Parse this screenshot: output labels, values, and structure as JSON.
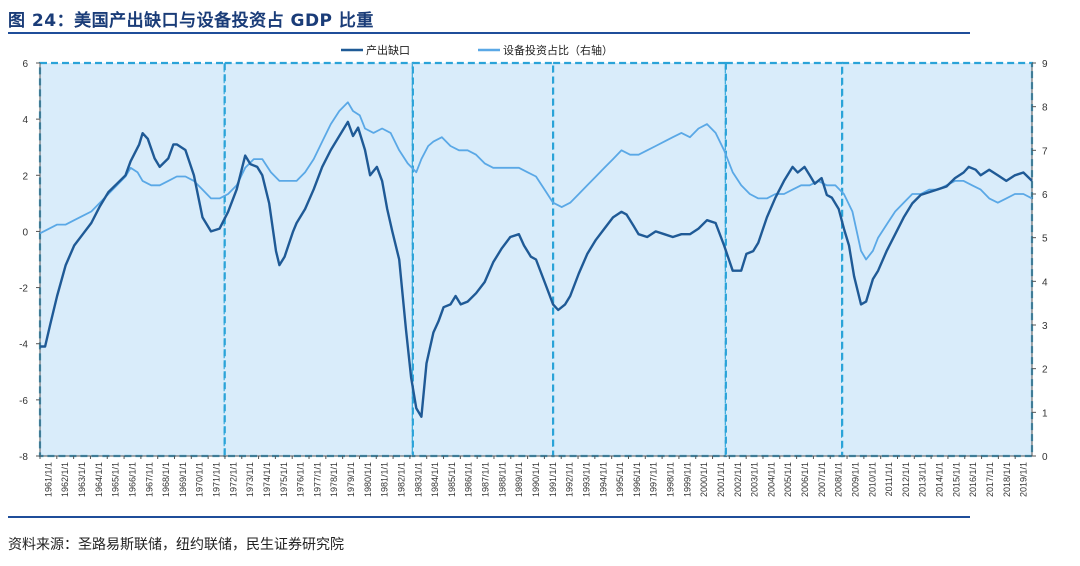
{
  "header": {
    "title": "图 24：美国产出缺口与设备投资占 GDP 比重"
  },
  "footer": {
    "source": "资料来源：圣路易斯联储，纽约联储，民生证券研究院"
  },
  "colors": {
    "output_gap": "#1f5a96",
    "equipment": "#5aa8e6",
    "band": "#d9ecfa",
    "dash": "#2aa3d8"
  },
  "chart_data": {
    "type": "line",
    "title": "",
    "x_start": 1961,
    "x_end": 2019,
    "x_ticks": [
      "1961/1/1",
      "1962/1/1",
      "1963/1/1",
      "1964/1/1",
      "1965/1/1",
      "1966/1/1",
      "1967/1/1",
      "1968/1/1",
      "1969/1/1",
      "1970/1/1",
      "1971/1/1",
      "1972/1/1",
      "1973/1/1",
      "1974/1/1",
      "1975/1/1",
      "1976/1/1",
      "1977/1/1",
      "1978/1/1",
      "1979/1/1",
      "1980/1/1",
      "1981/1/1",
      "1982/1/1",
      "1983/1/1",
      "1984/1/1",
      "1985/1/1",
      "1986/1/1",
      "1987/1/1",
      "1988/1/1",
      "1989/1/1",
      "1990/1/1",
      "1991/1/1",
      "1992/1/1",
      "1993/1/1",
      "1994/1/1",
      "1995/1/1",
      "1996/1/1",
      "1997/1/1",
      "1998/1/1",
      "1999/1/1",
      "2000/1/1",
      "2001/1/1",
      "2002/1/1",
      "2003/1/1",
      "2004/1/1",
      "2005/1/1",
      "2006/1/1",
      "2007/1/1",
      "2008/1/1",
      "2009/1/1",
      "2010/1/1",
      "2011/1/1",
      "2012/1/1",
      "2013/1/1",
      "2014/1/1",
      "2015/1/1",
      "2016/1/1",
      "2017/1/1",
      "2018/1/1",
      "2019/1/1"
    ],
    "y_left": {
      "min": -8,
      "max": 6,
      "ticks": [
        "6",
        "4",
        "2",
        "0",
        "-2",
        "-4",
        "-6",
        "-8"
      ]
    },
    "y_right": {
      "min": 0,
      "max": 9,
      "ticks": [
        "9",
        "8",
        "7",
        "6",
        "5",
        "4",
        "3",
        "2",
        "1",
        "0"
      ]
    },
    "legend_position": "top-center",
    "periods": [
      [
        1961,
        1971.8
      ],
      [
        1971.8,
        1982.8
      ],
      [
        1982.8,
        1991.0
      ],
      [
        1991.0,
        2001.1
      ],
      [
        2001.1,
        2007.9
      ],
      [
        2007.9,
        2019.0
      ]
    ],
    "series": [
      {
        "name": "产出缺口",
        "axis": "left",
        "points": [
          [
            1961,
            -4.1
          ],
          [
            1961.3,
            -4.1
          ],
          [
            1961.6,
            -3.3
          ],
          [
            1962,
            -2.3
          ],
          [
            1962.5,
            -1.2
          ],
          [
            1963,
            -0.5
          ],
          [
            1963.5,
            -0.1
          ],
          [
            1964,
            0.3
          ],
          [
            1964.5,
            0.9
          ],
          [
            1965,
            1.4
          ],
          [
            1965.5,
            1.7
          ],
          [
            1966,
            2.0
          ],
          [
            1966.3,
            2.5
          ],
          [
            1966.8,
            3.1
          ],
          [
            1967,
            3.5
          ],
          [
            1967.3,
            3.3
          ],
          [
            1967.7,
            2.6
          ],
          [
            1968,
            2.3
          ],
          [
            1968.5,
            2.6
          ],
          [
            1968.8,
            3.1
          ],
          [
            1969,
            3.1
          ],
          [
            1969.5,
            2.9
          ],
          [
            1970,
            2.0
          ],
          [
            1970.5,
            0.5
          ],
          [
            1971,
            0.0
          ],
          [
            1971.5,
            0.1
          ],
          [
            1972,
            0.7
          ],
          [
            1972.5,
            1.5
          ],
          [
            1973,
            2.7
          ],
          [
            1973.3,
            2.4
          ],
          [
            1973.7,
            2.3
          ],
          [
            1974,
            2.0
          ],
          [
            1974.4,
            1.0
          ],
          [
            1974.8,
            -0.7
          ],
          [
            1975,
            -1.2
          ],
          [
            1975.3,
            -0.9
          ],
          [
            1975.8,
            0.0
          ],
          [
            1976,
            0.3
          ],
          [
            1976.5,
            0.8
          ],
          [
            1977,
            1.5
          ],
          [
            1977.5,
            2.3
          ],
          [
            1978,
            2.9
          ],
          [
            1978.5,
            3.4
          ],
          [
            1979,
            3.9
          ],
          [
            1979.3,
            3.4
          ],
          [
            1979.6,
            3.7
          ],
          [
            1980,
            2.9
          ],
          [
            1980.3,
            2.0
          ],
          [
            1980.7,
            2.3
          ],
          [
            1981,
            1.8
          ],
          [
            1981.3,
            0.8
          ],
          [
            1981.6,
            0.0
          ],
          [
            1982,
            -1.0
          ],
          [
            1982.4,
            -3.5
          ],
          [
            1982.7,
            -5.2
          ],
          [
            1983,
            -6.3
          ],
          [
            1983.3,
            -6.6
          ],
          [
            1983.6,
            -4.7
          ],
          [
            1984,
            -3.6
          ],
          [
            1984.3,
            -3.2
          ],
          [
            1984.6,
            -2.7
          ],
          [
            1985,
            -2.6
          ],
          [
            1985.3,
            -2.3
          ],
          [
            1985.6,
            -2.6
          ],
          [
            1986,
            -2.5
          ],
          [
            1986.5,
            -2.2
          ],
          [
            1987,
            -1.8
          ],
          [
            1987.5,
            -1.1
          ],
          [
            1988,
            -0.6
          ],
          [
            1988.5,
            -0.2
          ],
          [
            1989,
            -0.1
          ],
          [
            1989.3,
            -0.5
          ],
          [
            1989.7,
            -0.9
          ],
          [
            1990,
            -1.0
          ],
          [
            1990.5,
            -1.8
          ],
          [
            1991,
            -2.6
          ],
          [
            1991.3,
            -2.8
          ],
          [
            1991.7,
            -2.6
          ],
          [
            1992,
            -2.3
          ],
          [
            1992.5,
            -1.5
          ],
          [
            1993,
            -0.8
          ],
          [
            1993.5,
            -0.3
          ],
          [
            1994,
            0.1
          ],
          [
            1994.5,
            0.5
          ],
          [
            1995,
            0.7
          ],
          [
            1995.3,
            0.6
          ],
          [
            1995.7,
            0.2
          ],
          [
            1996,
            -0.1
          ],
          [
            1996.5,
            -0.2
          ],
          [
            1997,
            0.0
          ],
          [
            1997.5,
            -0.1
          ],
          [
            1998,
            -0.2
          ],
          [
            1998.5,
            -0.1
          ],
          [
            1999,
            -0.1
          ],
          [
            1999.5,
            0.1
          ],
          [
            2000,
            0.4
          ],
          [
            2000.5,
            0.3
          ],
          [
            2001,
            -0.5
          ],
          [
            2001.5,
            -1.4
          ],
          [
            2002,
            -1.4
          ],
          [
            2002.3,
            -0.8
          ],
          [
            2002.7,
            -0.7
          ],
          [
            2003,
            -0.4
          ],
          [
            2003.5,
            0.5
          ],
          [
            2004,
            1.2
          ],
          [
            2004.5,
            1.8
          ],
          [
            2005,
            2.3
          ],
          [
            2005.3,
            2.1
          ],
          [
            2005.7,
            2.3
          ],
          [
            2006,
            2.0
          ],
          [
            2006.3,
            1.7
          ],
          [
            2006.7,
            1.9
          ],
          [
            2007,
            1.3
          ],
          [
            2007.3,
            1.2
          ],
          [
            2007.7,
            0.8
          ],
          [
            2008,
            0.1
          ],
          [
            2008.3,
            -0.5
          ],
          [
            2008.6,
            -1.6
          ],
          [
            2009,
            -2.6
          ],
          [
            2009.3,
            -2.5
          ],
          [
            2009.7,
            -1.7
          ],
          [
            2010,
            -1.4
          ],
          [
            2010.5,
            -0.7
          ],
          [
            2011,
            -0.1
          ],
          [
            2011.5,
            0.5
          ],
          [
            2012,
            1.0
          ],
          [
            2012.5,
            1.3
          ],
          [
            2013,
            1.4
          ],
          [
            2013.5,
            1.5
          ],
          [
            2014,
            1.6
          ],
          [
            2014.5,
            1.9
          ],
          [
            2015,
            2.1
          ],
          [
            2015.3,
            2.3
          ],
          [
            2015.7,
            2.2
          ],
          [
            2016,
            2.0
          ],
          [
            2016.5,
            2.2
          ],
          [
            2017,
            2.0
          ],
          [
            2017.5,
            1.8
          ],
          [
            2018,
            2.0
          ],
          [
            2018.5,
            2.1
          ],
          [
            2019,
            1.8
          ]
        ]
      },
      {
        "name": "设备投资占比（右轴）",
        "axis": "right",
        "points": [
          [
            1961,
            5.1
          ],
          [
            1961.5,
            5.2
          ],
          [
            1962,
            5.3
          ],
          [
            1962.5,
            5.3
          ],
          [
            1963,
            5.4
          ],
          [
            1963.5,
            5.5
          ],
          [
            1964,
            5.6
          ],
          [
            1964.5,
            5.8
          ],
          [
            1965,
            6.0
          ],
          [
            1965.5,
            6.2
          ],
          [
            1966,
            6.4
          ],
          [
            1966.3,
            6.6
          ],
          [
            1966.7,
            6.5
          ],
          [
            1967,
            6.3
          ],
          [
            1967.5,
            6.2
          ],
          [
            1968,
            6.2
          ],
          [
            1968.5,
            6.3
          ],
          [
            1969,
            6.4
          ],
          [
            1969.5,
            6.4
          ],
          [
            1970,
            6.3
          ],
          [
            1970.5,
            6.1
          ],
          [
            1971,
            5.9
          ],
          [
            1971.5,
            5.9
          ],
          [
            1972,
            6.0
          ],
          [
            1972.5,
            6.2
          ],
          [
            1973,
            6.6
          ],
          [
            1973.5,
            6.8
          ],
          [
            1974,
            6.8
          ],
          [
            1974.5,
            6.5
          ],
          [
            1975,
            6.3
          ],
          [
            1975.5,
            6.3
          ],
          [
            1976,
            6.3
          ],
          [
            1976.5,
            6.5
          ],
          [
            1977,
            6.8
          ],
          [
            1977.5,
            7.2
          ],
          [
            1978,
            7.6
          ],
          [
            1978.5,
            7.9
          ],
          [
            1979,
            8.1
          ],
          [
            1979.3,
            7.9
          ],
          [
            1979.7,
            7.8
          ],
          [
            1980,
            7.5
          ],
          [
            1980.5,
            7.4
          ],
          [
            1981,
            7.5
          ],
          [
            1981.5,
            7.4
          ],
          [
            1982,
            7.0
          ],
          [
            1982.5,
            6.7
          ],
          [
            1983,
            6.5
          ],
          [
            1983.3,
            6.8
          ],
          [
            1983.7,
            7.1
          ],
          [
            1984,
            7.2
          ],
          [
            1984.5,
            7.3
          ],
          [
            1985,
            7.1
          ],
          [
            1985.5,
            7.0
          ],
          [
            1986,
            7.0
          ],
          [
            1986.5,
            6.9
          ],
          [
            1987,
            6.7
          ],
          [
            1987.5,
            6.6
          ],
          [
            1988,
            6.6
          ],
          [
            1988.5,
            6.6
          ],
          [
            1989,
            6.6
          ],
          [
            1989.5,
            6.5
          ],
          [
            1990,
            6.4
          ],
          [
            1990.5,
            6.1
          ],
          [
            1991,
            5.8
          ],
          [
            1991.5,
            5.7
          ],
          [
            1992,
            5.8
          ],
          [
            1992.5,
            6.0
          ],
          [
            1993,
            6.2
          ],
          [
            1993.5,
            6.4
          ],
          [
            1994,
            6.6
          ],
          [
            1994.5,
            6.8
          ],
          [
            1995,
            7.0
          ],
          [
            1995.5,
            6.9
          ],
          [
            1996,
            6.9
          ],
          [
            1996.5,
            7.0
          ],
          [
            1997,
            7.1
          ],
          [
            1997.5,
            7.2
          ],
          [
            1998,
            7.3
          ],
          [
            1998.5,
            7.4
          ],
          [
            1999,
            7.3
          ],
          [
            1999.5,
            7.5
          ],
          [
            2000,
            7.6
          ],
          [
            2000.5,
            7.4
          ],
          [
            2001,
            7.0
          ],
          [
            2001.5,
            6.5
          ],
          [
            2002,
            6.2
          ],
          [
            2002.5,
            6.0
          ],
          [
            2003,
            5.9
          ],
          [
            2003.5,
            5.9
          ],
          [
            2004,
            6.0
          ],
          [
            2004.5,
            6.0
          ],
          [
            2005,
            6.1
          ],
          [
            2005.5,
            6.2
          ],
          [
            2006,
            6.2
          ],
          [
            2006.5,
            6.3
          ],
          [
            2007,
            6.2
          ],
          [
            2007.5,
            6.2
          ],
          [
            2008,
            6.0
          ],
          [
            2008.5,
            5.6
          ],
          [
            2009,
            4.7
          ],
          [
            2009.3,
            4.5
          ],
          [
            2009.7,
            4.7
          ],
          [
            2010,
            5.0
          ],
          [
            2010.5,
            5.3
          ],
          [
            2011,
            5.6
          ],
          [
            2011.5,
            5.8
          ],
          [
            2012,
            6.0
          ],
          [
            2012.5,
            6.0
          ],
          [
            2013,
            6.1
          ],
          [
            2013.5,
            6.1
          ],
          [
            2014,
            6.2
          ],
          [
            2014.5,
            6.3
          ],
          [
            2015,
            6.3
          ],
          [
            2015.5,
            6.2
          ],
          [
            2016,
            6.1
          ],
          [
            2016.5,
            5.9
          ],
          [
            2017,
            5.8
          ],
          [
            2017.5,
            5.9
          ],
          [
            2018,
            6.0
          ],
          [
            2018.5,
            6.0
          ],
          [
            2019,
            5.9
          ]
        ]
      }
    ]
  }
}
